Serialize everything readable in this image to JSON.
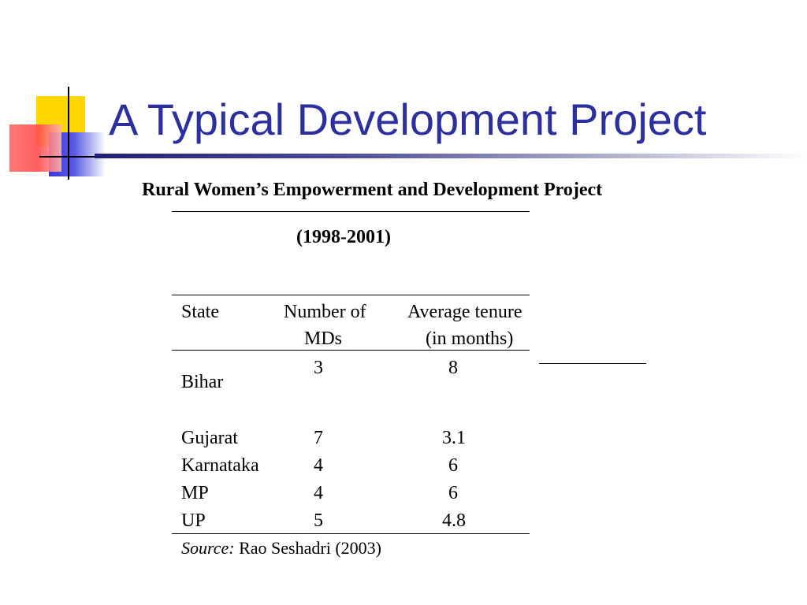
{
  "slide": {
    "title": "A Typical Development Project",
    "subtitle": "Rural Women’s Empowerment and Development Project",
    "years": "(1998-2001)"
  },
  "table": {
    "headers": {
      "state": "State",
      "mds_line1": "Number of",
      "mds_line2": "MDs",
      "tenure_line1": "Average tenure",
      "tenure_line2": "(in months)"
    },
    "rows": [
      {
        "state": "Bihar",
        "mds": "3",
        "tenure": "8"
      },
      {
        "state": "Gujarat",
        "mds": "7",
        "tenure": "3.1"
      },
      {
        "state": "Karnataka",
        "mds": "4",
        "tenure": "6"
      },
      {
        "state": "MP",
        "mds": "4",
        "tenure": "6"
      },
      {
        "state": "UP",
        "mds": "5",
        "tenure": "4.8"
      }
    ]
  },
  "source": {
    "label": "Source:",
    "text": " Rao Seshadri (2003)"
  },
  "colors": {
    "title": "#2b2fa0",
    "deco_yellow": "#ffd700",
    "deco_blue": "#3a3ad8",
    "deco_red": "#ff4c4c"
  }
}
